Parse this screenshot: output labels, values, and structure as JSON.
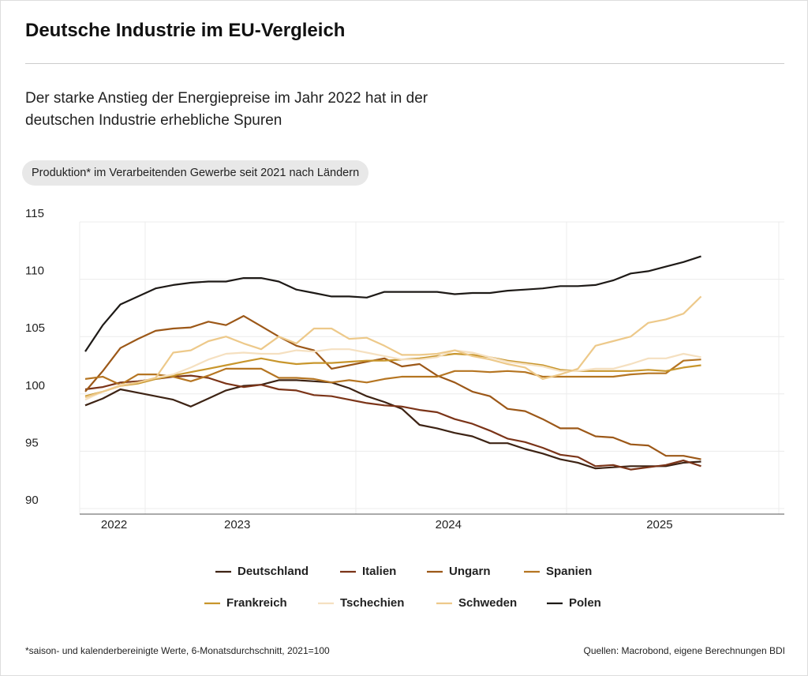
{
  "header": {
    "title": "Deutsche Industrie im EU-Vergleich",
    "subtitle": "Der starke Anstieg der Energiepreise im Jahr 2022 hat in der deutschen Industrie erhebliche Spuren",
    "pill": "Produktion* im Verarbeitenden Gewerbe seit 2021 nach Ländern"
  },
  "chart_data": {
    "type": "line",
    "categories": [
      null,
      null,
      "2022",
      null,
      null,
      null,
      null,
      null,
      null,
      "2023",
      null,
      null,
      null,
      null,
      null,
      null,
      null,
      null,
      null,
      null,
      null,
      "2024",
      null,
      null,
      null,
      null,
      null,
      null,
      null,
      null,
      null,
      null,
      null,
      "2025",
      null,
      null
    ],
    "ylim": [
      90,
      115
    ],
    "yticks": [
      90,
      95,
      100,
      105,
      110,
      115
    ],
    "grid": true,
    "series": [
      {
        "name": "Deutschland",
        "color": "#3d2314",
        "values": [
          99,
          99.6,
          100.4,
          100.1,
          99.8,
          99.5,
          98.9,
          99.6,
          100.3,
          100.7,
          100.8,
          101.2,
          101.2,
          101.1,
          101.0,
          100.5,
          99.8,
          99.3,
          98.7,
          97.3,
          97.0,
          96.6,
          96.3,
          95.7,
          95.7,
          95.2,
          94.8,
          94.3,
          94.0,
          93.5,
          93.6,
          93.7,
          93.7,
          93.7,
          94.0,
          94.1
        ]
      },
      {
        "name": "Italien",
        "color": "#7b3418",
        "values": [
          100.4,
          100.6,
          101.0,
          101.1,
          101.3,
          101.5,
          101.6,
          101.4,
          100.9,
          100.6,
          100.8,
          100.4,
          100.3,
          99.9,
          99.8,
          99.5,
          99.2,
          99.0,
          98.9,
          98.6,
          98.4,
          97.8,
          97.4,
          96.8,
          96.1,
          95.8,
          95.3,
          94.7,
          94.5,
          93.7,
          93.8,
          93.4,
          93.6,
          93.8,
          94.2,
          93.7
        ]
      },
      {
        "name": "Ungarn",
        "color": "#9c5818",
        "values": [
          100.2,
          102,
          104.0,
          104.8,
          105.5,
          105.7,
          105.8,
          106.3,
          106.0,
          106.8,
          105.9,
          105.0,
          104.2,
          103.8,
          102.2,
          102.5,
          102.8,
          103.1,
          102.4,
          102.6,
          101.6,
          101.0,
          100.2,
          99.8,
          98.7,
          98.5,
          97.8,
          97.0,
          97.0,
          96.3,
          96.2,
          95.6,
          95.5,
          94.6,
          94.6,
          94.3
        ]
      },
      {
        "name": "Spanien",
        "color": "#b57522",
        "values": [
          101.3,
          101.5,
          100.8,
          101.7,
          101.7,
          101.5,
          101.1,
          101.6,
          102.2,
          102.2,
          102.2,
          101.4,
          101.4,
          101.3,
          101.0,
          101.2,
          101.0,
          101.3,
          101.5,
          101.5,
          101.5,
          102.0,
          102.0,
          101.9,
          102.0,
          101.9,
          101.5,
          101.5,
          101.5,
          101.5,
          101.5,
          101.7,
          101.8,
          101.8,
          102.9,
          103.0
        ]
      },
      {
        "name": "Frankreich",
        "color": "#c8962c",
        "values": [
          99.8,
          100.2,
          100.7,
          100.9,
          101.3,
          101.6,
          101.9,
          102.2,
          102.5,
          102.8,
          103.1,
          102.8,
          102.6,
          102.7,
          102.7,
          102.8,
          102.9,
          102.9,
          103.0,
          103.1,
          103.3,
          103.5,
          103.4,
          103.2,
          102.9,
          102.7,
          102.5,
          102.1,
          102.0,
          102.0,
          102.0,
          102.0,
          102.1,
          102.0,
          102.3,
          102.5
        ]
      },
      {
        "name": "Tschechien",
        "color": "#f5e0c0",
        "values": [
          99.5,
          100.2,
          100.8,
          101.0,
          101.4,
          101.7,
          102.3,
          103.0,
          103.5,
          103.6,
          103.5,
          103.5,
          103.8,
          103.7,
          103.9,
          103.9,
          103.6,
          103.3,
          103.0,
          103.0,
          103.2,
          103.8,
          103.6,
          103.2,
          102.8,
          102.6,
          102.4,
          102.0,
          102.0,
          102.2,
          102.2,
          102.6,
          103.1,
          103.1,
          103.5,
          103.2
        ]
      },
      {
        "name": "Schweden",
        "color": "#edc98a",
        "values": [
          99.7,
          100.2,
          100.7,
          101.0,
          101.4,
          103.6,
          103.8,
          104.6,
          105.0,
          104.4,
          103.9,
          105.0,
          104.4,
          105.7,
          105.7,
          104.8,
          104.9,
          104.2,
          103.4,
          103.4,
          103.5,
          103.8,
          103.3,
          103.0,
          102.6,
          102.3,
          101.3,
          101.7,
          102.2,
          104.2,
          104.6,
          105.0,
          106.2,
          106.5,
          107.0,
          108.5
        ]
      },
      {
        "name": "Polen",
        "color": "#1e1a17",
        "values": [
          103.7,
          106,
          107.8,
          108.5,
          109.2,
          109.5,
          109.7,
          109.8,
          109.8,
          110.1,
          110.1,
          109.8,
          109.1,
          108.8,
          108.5,
          108.5,
          108.4,
          108.9,
          108.9,
          108.9,
          108.9,
          108.7,
          108.8,
          108.8,
          109.0,
          109.1,
          109.2,
          109.4,
          109.4,
          109.5,
          109.9,
          110.5,
          110.7,
          111.1,
          111.5,
          112.0
        ]
      }
    ]
  },
  "footer": {
    "note": "*saison- und kalenderbereinigte Werte, 6-Monatsdurchschnitt, 2021=100",
    "source": "Quellen: Macrobond, eigene Berechnungen BDI"
  }
}
